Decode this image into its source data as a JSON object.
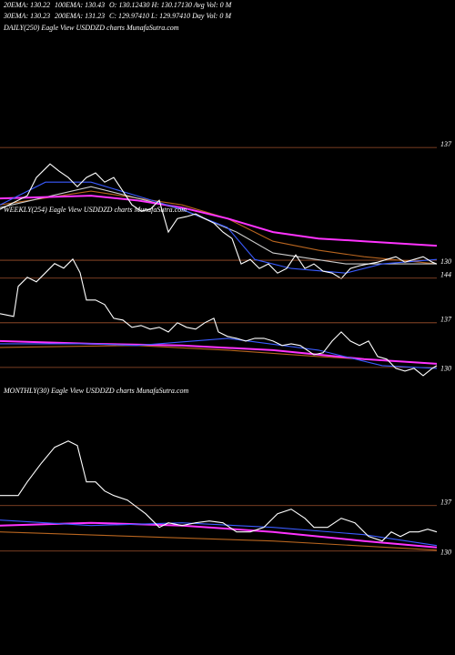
{
  "header": {
    "ema20": "20EMA: 130.22",
    "ema100": "100EMA: 130.43",
    "ohlc1": "O: 130.12430 H: 130.17130 Avg Vol: 0  M",
    "ema30": "30EMA: 130.23",
    "ema200": "200EMA: 131.23",
    "ohlc2": "C: 129.97410 L: 129.97410 Day Vol: 0  M"
  },
  "chart_data": [
    {
      "type": "line",
      "title": "DAILY(250) Eagle  View  USDDZD charts MunafaSutra.com",
      "xlim": [
        0,
        480
      ],
      "ylim": [
        128.5,
        143.9
      ],
      "yticks": [
        130,
        137
      ],
      "grid": true,
      "grid_color": "#a0522d",
      "series": [
        {
          "color": "#b8651f",
          "x": [
            0,
            100,
            200,
            250,
            300,
            350,
            400,
            480
          ],
          "values": [
            133.44,
            134.29,
            133.44,
            132.59,
            131.18,
            130.62,
            130.22,
            129.77
          ]
        },
        {
          "color": "#cccccc",
          "x": [
            0,
            100,
            200,
            260,
            300,
            380,
            480
          ],
          "values": [
            133.27,
            134.57,
            133.16,
            131.75,
            130.45,
            129.77,
            129.77
          ]
        },
        {
          "color": "#ff33ff",
          "x": [
            0,
            100,
            150,
            200,
            250,
            300,
            350,
            400,
            480
          ],
          "values": [
            133.84,
            134.01,
            133.72,
            133.27,
            132.59,
            131.75,
            131.35,
            131.18,
            130.9
          ]
        },
        {
          "color": "#3a5bff",
          "x": [
            0,
            50,
            100,
            150,
            200,
            250,
            280,
            320,
            380,
            420,
            480
          ],
          "values": [
            133.44,
            134.85,
            134.85,
            134.01,
            133.16,
            132.03,
            130.05,
            129.49,
            129.2,
            129.77,
            130.05
          ]
        },
        {
          "color": "#ffffff",
          "x": [
            0,
            30,
            40,
            50,
            55,
            65,
            75,
            85,
            95,
            105,
            115,
            125,
            135,
            145,
            155,
            165,
            175,
            185,
            195,
            205,
            215,
            225,
            235,
            245,
            255,
            265,
            275,
            285,
            295,
            305,
            315,
            325,
            335,
            345,
            355,
            365,
            375,
            385,
            395,
            405,
            415,
            425,
            435,
            445,
            455,
            465,
            475,
            480
          ],
          "values": [
            133.16,
            134.01,
            135.14,
            135.7,
            135.98,
            135.53,
            135.14,
            134.57,
            135.14,
            135.42,
            134.85,
            135.14,
            134.29,
            133.44,
            133.05,
            133.16,
            133.72,
            131.75,
            132.59,
            132.71,
            132.88,
            132.59,
            132.31,
            131.75,
            131.35,
            129.77,
            130.05,
            129.49,
            129.77,
            129.2,
            129.49,
            130.33,
            129.49,
            129.77,
            129.32,
            129.2,
            128.86,
            129.49,
            129.66,
            129.77,
            129.88,
            130.05,
            130.22,
            129.88,
            130.05,
            130.22,
            129.88,
            129.77
          ]
        }
      ]
    },
    {
      "type": "line",
      "title": "WEEKLY(254) Eagle  View  USDDZD charts MunafaSutra.com",
      "xlim": [
        0,
        480
      ],
      "ylim": [
        127.7,
        155.1
      ],
      "yticks": [
        130,
        137,
        144
      ],
      "grid": true,
      "grid_color": "#a0522d",
      "series": [
        {
          "color": "#b8651f",
          "x": [
            0,
            150,
            250,
            350,
            480
          ],
          "values": [
            133.14,
            133.43,
            132.71,
            131.71,
            130.57
          ]
        },
        {
          "color": "#ff33ff",
          "x": [
            0,
            100,
            200,
            300,
            400,
            480
          ],
          "values": [
            134.14,
            133.71,
            133.43,
            132.71,
            131.29,
            130.57
          ]
        },
        {
          "color": "#3a5bff",
          "x": [
            0,
            100,
            150,
            250,
            350,
            420,
            480
          ],
          "values": [
            133.71,
            133.71,
            133.43,
            134.57,
            132.71,
            130.29,
            129.86
          ]
        },
        {
          "color": "#ffffff",
          "x": [
            0,
            15,
            20,
            30,
            40,
            50,
            60,
            70,
            80,
            88,
            95,
            105,
            115,
            125,
            135,
            145,
            155,
            165,
            175,
            185,
            195,
            205,
            215,
            225,
            235,
            240,
            250,
            260,
            270,
            280,
            290,
            300,
            310,
            320,
            330,
            345,
            355,
            365,
            375,
            385,
            395,
            405,
            415,
            425,
            435,
            445,
            455,
            465,
            475,
            480
          ],
          "values": [
            138.43,
            138.0,
            142.71,
            144.14,
            143.43,
            144.86,
            146.29,
            145.57,
            147.0,
            144.86,
            140.57,
            140.57,
            139.86,
            137.71,
            137.43,
            136.29,
            136.57,
            136.0,
            136.29,
            135.57,
            137.0,
            136.29,
            136.0,
            137.0,
            137.71,
            135.57,
            134.86,
            134.57,
            134.14,
            134.57,
            134.57,
            134.14,
            133.43,
            133.71,
            133.43,
            132.0,
            132.29,
            134.14,
            135.57,
            134.14,
            133.43,
            134.14,
            131.71,
            131.29,
            129.86,
            129.43,
            129.86,
            128.71,
            129.86,
            130.29
          ]
        }
      ]
    },
    {
      "type": "line",
      "title": "MONTHLY(30) Eagle  View  USDDZD charts MunafaSutra.com",
      "xlim": [
        0,
        480
      ],
      "ylim": [
        116.8,
        154.6
      ],
      "yticks": [
        130,
        137
      ],
      "grid": true,
      "grid_color": "#a0522d",
      "series": [
        {
          "color": "#b8651f",
          "x": [
            0,
            150,
            300,
            480
          ],
          "values": [
            132.94,
            132.24,
            131.54,
            130.14
          ]
        },
        {
          "color": "#ff33ff",
          "x": [
            0,
            100,
            200,
            300,
            400,
            480
          ],
          "values": [
            133.92,
            134.34,
            133.92,
            132.94,
            131.54,
            130.56
          ]
        },
        {
          "color": "#3a5bff",
          "x": [
            0,
            100,
            200,
            300,
            400,
            480
          ],
          "values": [
            134.76,
            133.92,
            134.34,
            133.64,
            132.52,
            130.84
          ]
        },
        {
          "color": "#ffffff",
          "x": [
            0,
            20,
            30,
            45,
            60,
            75,
            85,
            95,
            105,
            115,
            125,
            140,
            160,
            175,
            185,
            200,
            215,
            230,
            245,
            260,
            275,
            290,
            305,
            320,
            335,
            345,
            360,
            375,
            390,
            405,
            420,
            430,
            440,
            450,
            460,
            470,
            480
          ],
          "values": [
            138.54,
            138.54,
            140.64,
            143.44,
            145.96,
            146.94,
            146.24,
            140.64,
            140.64,
            139.24,
            138.54,
            137.84,
            135.74,
            133.64,
            134.34,
            133.92,
            134.34,
            134.62,
            134.34,
            132.94,
            132.94,
            133.64,
            135.74,
            136.44,
            135.04,
            133.64,
            133.64,
            135.04,
            134.34,
            132.24,
            131.54,
            132.94,
            132.24,
            132.94,
            132.94,
            133.36,
            132.94
          ]
        }
      ]
    }
  ]
}
